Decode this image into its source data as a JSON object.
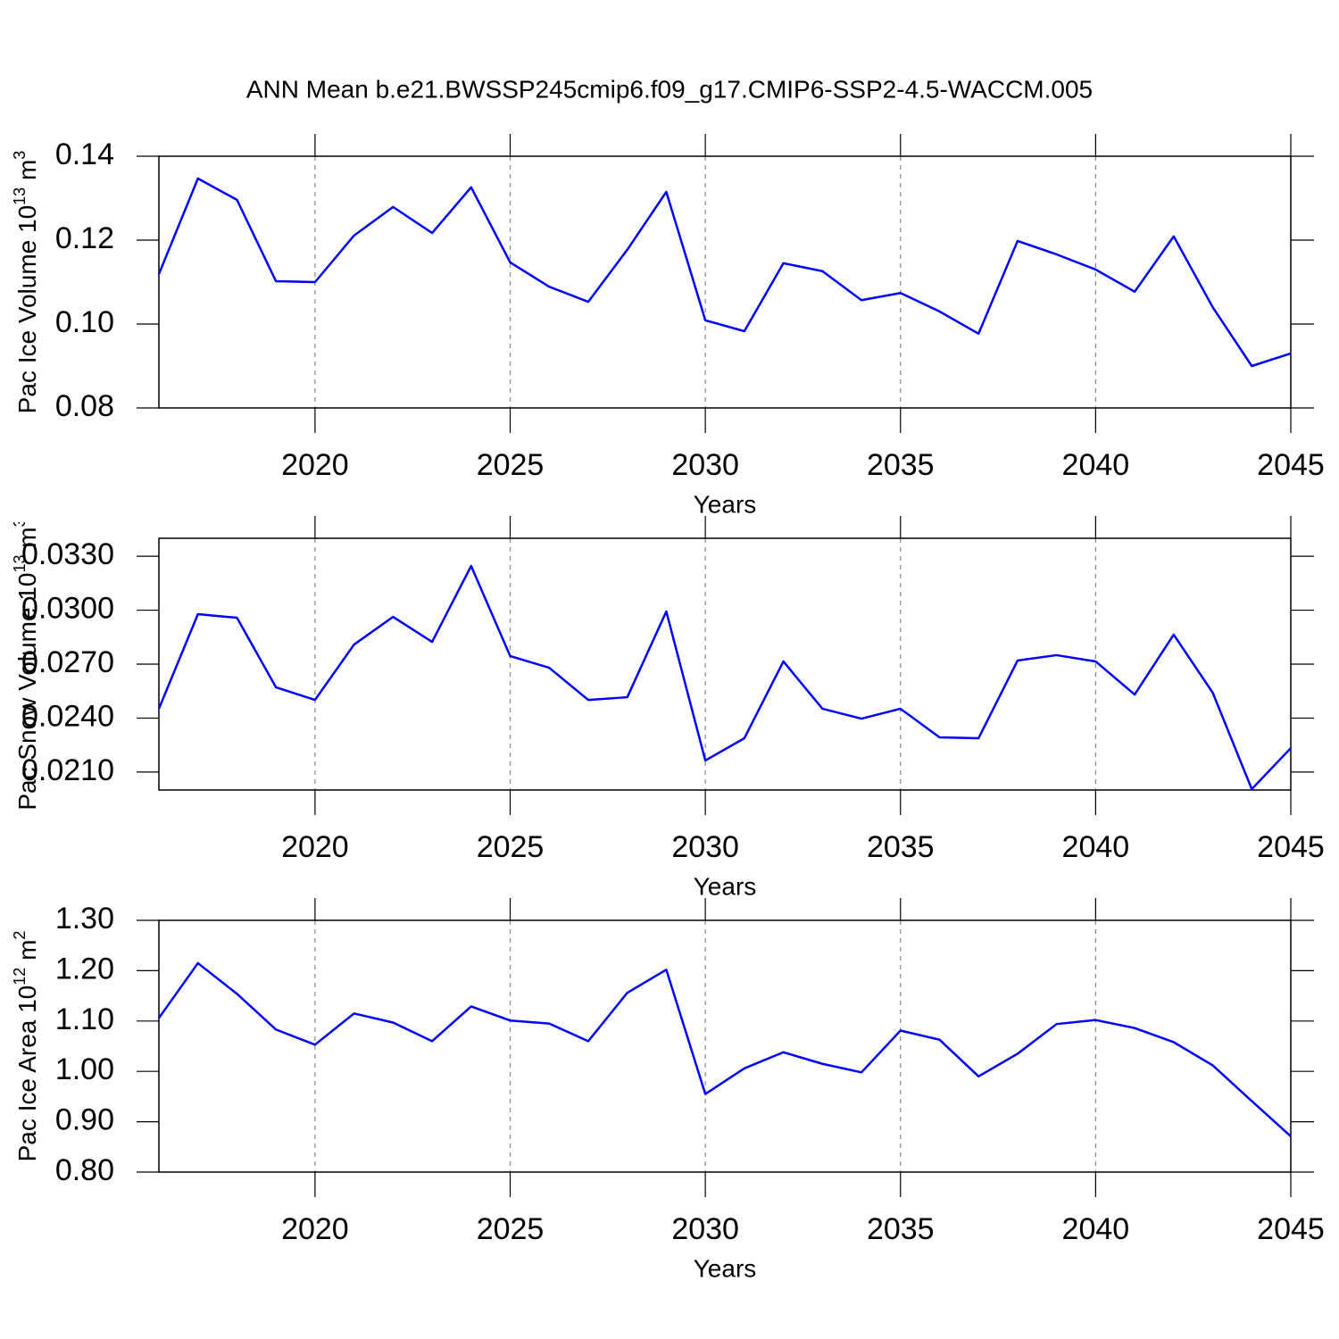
{
  "chart_data": [
    {
      "type": "line",
      "title": "ANN Mean b.e21.BWSSP245cmip6.f09_g17.CMIP6-SSP2-4.5-WACCM.005",
      "ylabel": {
        "text": "Pac Ice Volume 10",
        "exponent": "13",
        "unit": " m",
        "unit_exponent": "3"
      },
      "xlabel": "Years",
      "x": [
        2016,
        2017,
        2018,
        2019,
        2020,
        2021,
        2022,
        2023,
        2024,
        2025,
        2026,
        2027,
        2028,
        2029,
        2030,
        2031,
        2032,
        2033,
        2034,
        2035,
        2036,
        2037,
        2038,
        2039,
        2040,
        2041,
        2042,
        2043,
        2044,
        2045
      ],
      "series": [
        {
          "color": "#0000ff",
          "values": [
            0.1119,
            0.1347,
            0.1296,
            0.1102,
            0.11,
            0.1211,
            0.1279,
            0.1217,
            0.1326,
            0.1147,
            0.1089,
            0.1053,
            0.1177,
            0.1315,
            0.1009,
            0.0983,
            0.1145,
            0.1126,
            0.1057,
            0.1074,
            0.103,
            0.0977,
            0.1198,
            0.1166,
            0.113,
            0.1077,
            0.1209,
            0.104,
            0.09,
            0.093
          ]
        }
      ],
      "xlim": [
        2016,
        2045
      ],
      "xticks": [
        2020,
        2025,
        2030,
        2035,
        2040,
        2045
      ],
      "ylim": [
        0.08,
        0.14
      ],
      "yticks": [
        0.14,
        0.12,
        {
          "value": 0.1,
          "label": "0.10"
        },
        0.08
      ],
      "grid": "x"
    },
    {
      "type": "line",
      "ylabel": {
        "text": "Pac Snow Volume 10",
        "exponent": "13",
        "unit": " m",
        "unit_exponent": "3"
      },
      "xlabel": "Years",
      "x": [
        2016,
        2017,
        2018,
        2019,
        2020,
        2021,
        2022,
        2023,
        2024,
        2025,
        2026,
        2027,
        2028,
        2029,
        2030,
        2031,
        2032,
        2033,
        2034,
        2035,
        2036,
        2037,
        2038,
        2039,
        2040,
        2041,
        2042,
        2043,
        2044,
        2045
      ],
      "series": [
        {
          "color": "#0000ff",
          "values": [
            0.02452,
            0.02978,
            0.02958,
            0.02571,
            0.02501,
            0.02809,
            0.02963,
            0.02824,
            0.03246,
            0.02745,
            0.0268,
            0.02501,
            0.02516,
            0.02993,
            0.02164,
            0.02288,
            0.02715,
            0.02452,
            0.02397,
            0.02452,
            0.02293,
            0.02288,
            0.0272,
            0.0275,
            0.02715,
            0.02531,
            0.02864,
            0.02541,
            0.02005,
            0.02233
          ]
        }
      ],
      "xlim": [
        2016,
        2045
      ],
      "xticks": [
        2020,
        2025,
        2030,
        2035,
        2040,
        2045
      ],
      "ylim": [
        0.02,
        0.034
      ],
      "yticks": [
        {
          "value": 0.033,
          "label": "0.0330"
        },
        {
          "value": 0.03,
          "label": "0.0300"
        },
        {
          "value": 0.027,
          "label": "0.0270"
        },
        {
          "value": 0.024,
          "label": "0.0240"
        },
        {
          "value": 0.021,
          "label": "0.0210"
        }
      ],
      "grid": "x"
    },
    {
      "type": "line",
      "ylabel": {
        "text": "Pac Ice Area 10",
        "exponent": "12",
        "unit": " m",
        "unit_exponent": "2"
      },
      "xlabel": "Years",
      "x": [
        2016,
        2017,
        2018,
        2019,
        2020,
        2021,
        2022,
        2023,
        2024,
        2025,
        2026,
        2027,
        2028,
        2029,
        2030,
        2031,
        2032,
        2033,
        2034,
        2035,
        2036,
        2037,
        2038,
        2039,
        2040,
        2041,
        2042,
        2043,
        2044,
        2045
      ],
      "series": [
        {
          "color": "#0000ff",
          "values": [
            1.106,
            1.215,
            1.154,
            1.083,
            1.053,
            1.115,
            1.097,
            1.06,
            1.129,
            1.101,
            1.095,
            1.06,
            1.156,
            1.202,
            0.955,
            1.006,
            1.038,
            1.015,
            0.998,
            1.081,
            1.063,
            0.99,
            1.035,
            1.094,
            1.102,
            1.086,
            1.058,
            1.012,
            0.941,
            0.871
          ]
        }
      ],
      "xlim": [
        2016,
        2045
      ],
      "xticks": [
        2020,
        2025,
        2030,
        2035,
        2040,
        2045
      ],
      "ylim": [
        0.8,
        1.3
      ],
      "yticks": [
        {
          "value": 1.3,
          "label": "1.30"
        },
        {
          "value": 1.2,
          "label": "1.20"
        },
        {
          "value": 1.1,
          "label": "1.10"
        },
        {
          "value": 1.0,
          "label": "1.00"
        },
        {
          "value": 0.9,
          "label": "0.90"
        },
        {
          "value": 0.8,
          "label": "0.80"
        }
      ],
      "grid": "x"
    }
  ]
}
